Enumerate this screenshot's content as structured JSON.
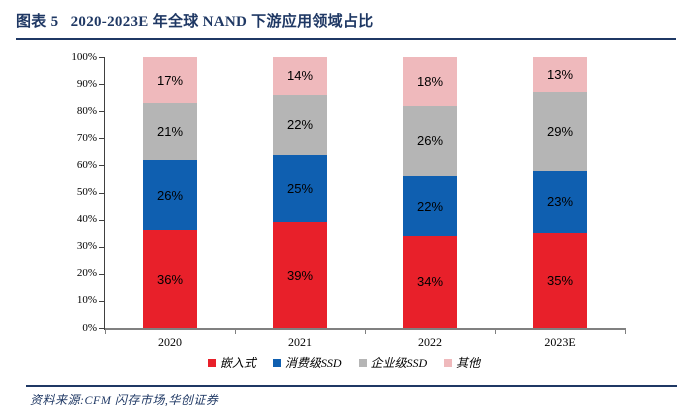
{
  "header": {
    "title": "图表 5   2020-2023E 年全球 NAND 下游应用领域占比"
  },
  "footer": {
    "source": "资料来源:CFM 闪存市场,华创证券"
  },
  "colors": {
    "accent_navy": "#1F3864",
    "x_axis_line": "#808080",
    "y_axis_line": "#404040",
    "series_red": "#E8202A",
    "series_blue": "#0F5FB0",
    "series_gray": "#B5B5B5",
    "series_pink": "#EFB9BC"
  },
  "chart_data": {
    "type": "bar",
    "stacked": true,
    "title": "2020-2023E 年全球 NAND 下游应用领域占比",
    "categories": [
      "2020",
      "2021",
      "2022",
      "2023E"
    ],
    "series": [
      {
        "name": "嵌入式",
        "color": "#E8202A",
        "values": [
          36,
          39,
          34,
          35
        ]
      },
      {
        "name": "消费级SSD",
        "color": "#0F5FB0",
        "values": [
          26,
          25,
          22,
          23
        ]
      },
      {
        "name": "企业级SSD",
        "color": "#B5B5B5",
        "values": [
          21,
          22,
          26,
          29
        ]
      },
      {
        "name": "其他",
        "color": "#EFB9BC",
        "values": [
          17,
          14,
          18,
          13
        ]
      }
    ],
    "ylim": [
      0,
      100
    ],
    "yticks": [
      "0%",
      "10%",
      "20%",
      "30%",
      "40%",
      "50%",
      "60%",
      "70%",
      "80%",
      "90%",
      "100%"
    ],
    "value_label_suffix": "%",
    "xlabel": "",
    "ylabel": "",
    "grid": false,
    "legend_position": "bottom"
  }
}
